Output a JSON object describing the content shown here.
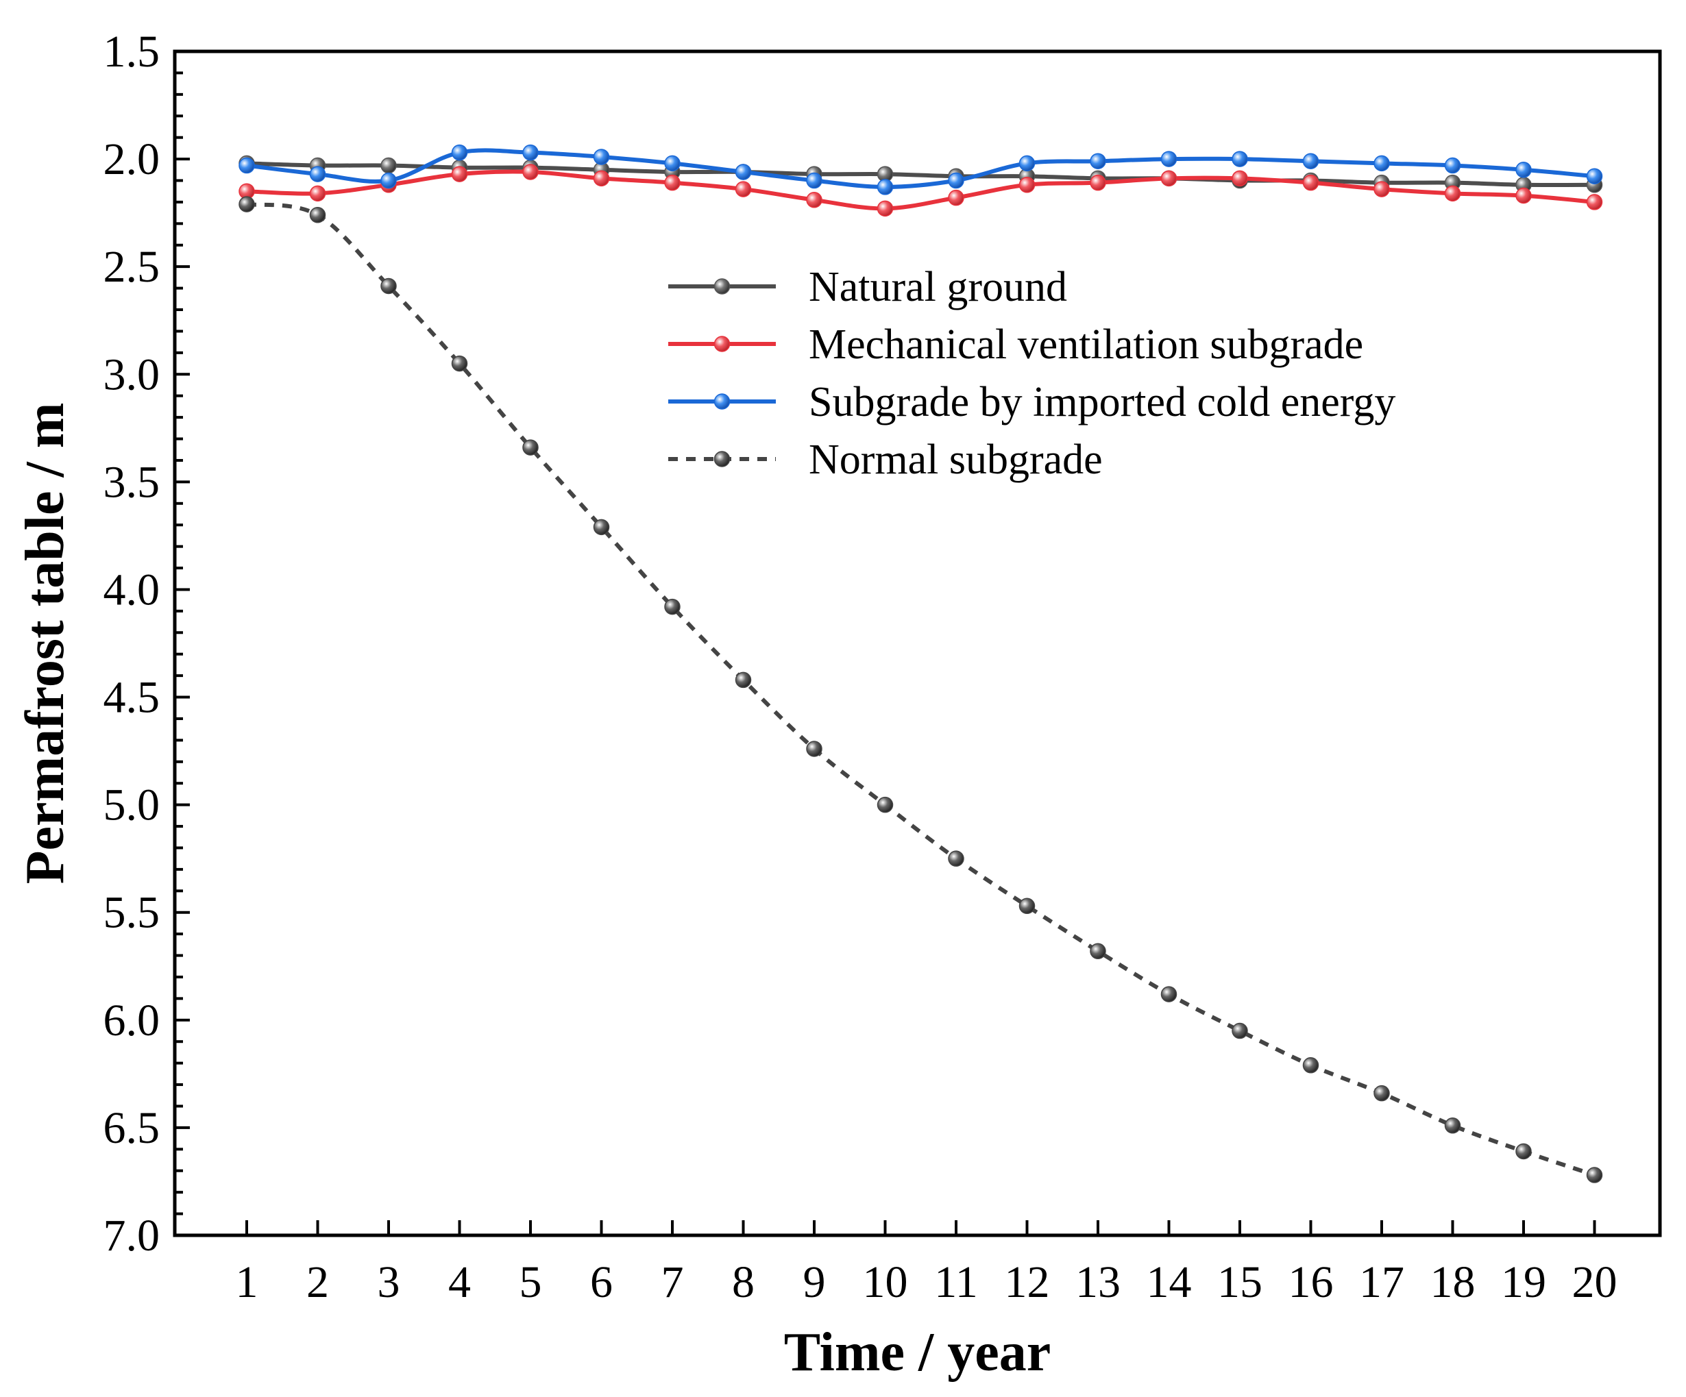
{
  "chart_data": {
    "type": "line",
    "title": "",
    "xlabel": "Time / year",
    "ylabel": "Permafrost table / m",
    "x": [
      1,
      2,
      3,
      4,
      5,
      6,
      7,
      8,
      9,
      10,
      11,
      12,
      13,
      14,
      15,
      16,
      17,
      18,
      19,
      20
    ],
    "x_tick_labels": [
      "1",
      "2",
      "3",
      "4",
      "5",
      "6",
      "7",
      "8",
      "9",
      "10",
      "11",
      "12",
      "13",
      "14",
      "15",
      "16",
      "17",
      "18",
      "19",
      "20"
    ],
    "ylim": [
      1.5,
      7.0
    ],
    "y_inverted": true,
    "y_ticks": [
      1.5,
      2.0,
      2.5,
      3.0,
      3.5,
      4.0,
      4.5,
      5.0,
      5.5,
      6.0,
      6.5,
      7.0
    ],
    "y_tick_labels": [
      "1.5",
      "2.0",
      "2.5",
      "3.0",
      "3.5",
      "4.0",
      "4.5",
      "5.0",
      "5.5",
      "6.0",
      "6.5",
      "7.0"
    ],
    "y_minor_step": 0.1,
    "legend_position": "upper-center",
    "grid": false,
    "series": [
      {
        "name": "Natural ground",
        "color": "#4d4d4d",
        "marker_color": "#555555",
        "style": "solid",
        "values": [
          2.02,
          2.03,
          2.03,
          2.04,
          2.04,
          2.05,
          2.06,
          2.06,
          2.07,
          2.07,
          2.08,
          2.08,
          2.09,
          2.09,
          2.1,
          2.1,
          2.11,
          2.11,
          2.12,
          2.12
        ]
      },
      {
        "name": "Mechanical ventilation subgrade",
        "color": "#e8323c",
        "marker_color": "#e8323c",
        "style": "solid",
        "values": [
          2.15,
          2.16,
          2.12,
          2.07,
          2.06,
          2.09,
          2.11,
          2.14,
          2.19,
          2.23,
          2.18,
          2.12,
          2.11,
          2.09,
          2.09,
          2.11,
          2.14,
          2.16,
          2.17,
          2.2
        ]
      },
      {
        "name": "Subgrade by imported cold energy",
        "color": "#1a68d6",
        "marker_color": "#1a68d6",
        "style": "solid",
        "values": [
          2.03,
          2.07,
          2.1,
          1.97,
          1.97,
          1.99,
          2.02,
          2.06,
          2.1,
          2.13,
          2.1,
          2.02,
          2.01,
          2.0,
          2.0,
          2.01,
          2.02,
          2.03,
          2.05,
          2.08
        ]
      },
      {
        "name": "Normal subgrade",
        "color": "#444444",
        "marker_color": "#444444",
        "style": "dotted",
        "values": [
          2.21,
          2.26,
          2.59,
          2.95,
          3.34,
          3.71,
          4.08,
          4.42,
          4.74,
          5.0,
          5.25,
          5.47,
          5.68,
          5.88,
          6.05,
          6.21,
          6.34,
          6.49,
          6.61,
          6.72
        ]
      }
    ]
  }
}
